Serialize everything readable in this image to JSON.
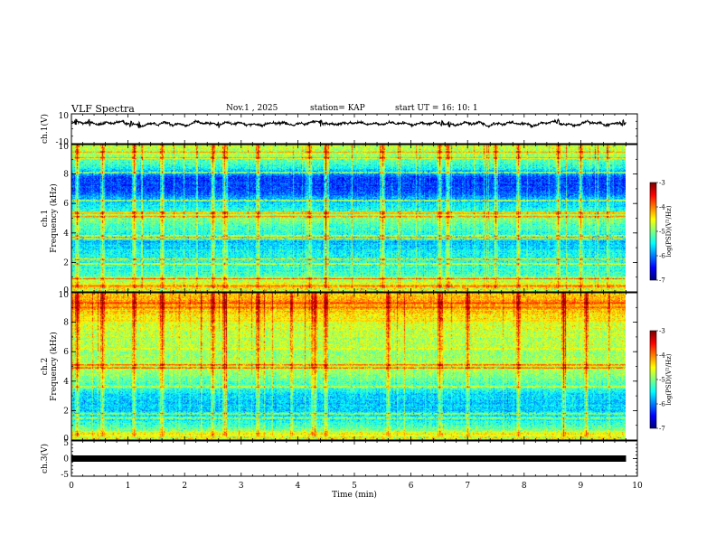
{
  "header": {
    "title": "VLF Spectra",
    "date": "Nov.1  , 2025",
    "station": "station= KAP",
    "start": "start  UT  =   16: 10: 1"
  },
  "chart_data": [
    {
      "type": "line",
      "name": "ch1-waveform",
      "ylabel": "ch.1(V)",
      "ylim": [
        -10,
        10
      ],
      "yticks": [
        "10",
        "-10"
      ],
      "xlim": [
        0,
        10
      ],
      "x_end": 9.8,
      "baseline": 3.5,
      "amplitude_range": [
        1.5,
        7.5
      ],
      "spike_times": [
        0.08,
        0.32,
        1.05,
        1.2,
        2.6,
        4.4,
        6.55,
        6.68,
        8.6,
        9.75
      ]
    },
    {
      "type": "heatmap",
      "name": "ch1-spectrogram",
      "ylabel": "ch.1\nFrequency (kHz)",
      "ylim": [
        0,
        10
      ],
      "yticks": [
        "0",
        "2",
        "4",
        "6",
        "8",
        "10"
      ],
      "xlim": [
        0,
        10
      ],
      "x_end": 9.8,
      "colorbar": {
        "label": "log(PSD)(V²/Hz)",
        "range": [
          -7,
          -3
        ],
        "ticks": [
          "-3",
          "-4",
          "-5",
          "-6",
          "-7"
        ]
      },
      "profile": [
        {
          "f": 0.0,
          "v": -4.4
        },
        {
          "f": 0.4,
          "v": -4.4
        },
        {
          "f": 0.8,
          "v": -4.9
        },
        {
          "f": 1.2,
          "v": -5.3
        },
        {
          "f": 2.0,
          "v": -5.4
        },
        {
          "f": 2.8,
          "v": -5.55
        },
        {
          "f": 3.4,
          "v": -5.75
        },
        {
          "f": 4.2,
          "v": -5.3
        },
        {
          "f": 5.0,
          "v": -5.0
        },
        {
          "f": 5.6,
          "v": -5.4
        },
        {
          "f": 6.0,
          "v": -5.6
        },
        {
          "f": 6.4,
          "v": -5.9
        },
        {
          "f": 7.0,
          "v": -6.3
        },
        {
          "f": 7.8,
          "v": -6.2
        },
        {
          "f": 8.5,
          "v": -5.4
        },
        {
          "f": 9.3,
          "v": -4.9
        },
        {
          "f": 10.0,
          "v": -4.7
        }
      ],
      "lines": [
        {
          "f": 0.4,
          "v": -3.8
        },
        {
          "f": 0.9,
          "v": -3.6
        },
        {
          "f": 1.9,
          "v": -4.2
        },
        {
          "f": 2.2,
          "v": -3.8
        },
        {
          "f": 3.6,
          "v": -4.1
        },
        {
          "f": 3.8,
          "v": -4.0
        },
        {
          "f": 5.1,
          "v": -3.7
        },
        {
          "f": 5.3,
          "v": -4.1
        },
        {
          "f": 5.4,
          "v": -3.8
        },
        {
          "f": 6.2,
          "v": -4.4
        },
        {
          "f": 8.1,
          "v": -4.5
        },
        {
          "f": 9.1,
          "v": -4.0
        },
        {
          "f": 9.5,
          "v": -3.9
        }
      ],
      "events": [
        0.1,
        0.55,
        1.1,
        1.6,
        2.5,
        2.7,
        3.3,
        4.2,
        4.5,
        5.5,
        6.5,
        6.65,
        7.5,
        7.9,
        8.6,
        9.0
      ]
    },
    {
      "type": "heatmap",
      "name": "ch2-spectrogram",
      "ylabel": "ch.2\nFrequency (kHz)",
      "ylim": [
        0,
        10
      ],
      "yticks": [
        "0",
        "2",
        "4",
        "6",
        "8",
        "10"
      ],
      "xlim": [
        0,
        10
      ],
      "x_end": 9.8,
      "colorbar": {
        "label": "log(PSD)(V²/Hz)",
        "range": [
          -7,
          -3
        ],
        "ticks": [
          "-3",
          "-4",
          "-5",
          "-6",
          "-7"
        ]
      },
      "profile": [
        {
          "f": 0.0,
          "v": -5.6
        },
        {
          "f": 0.4,
          "v": -4.5
        },
        {
          "f": 0.8,
          "v": -5.1
        },
        {
          "f": 1.5,
          "v": -5.6
        },
        {
          "f": 2.2,
          "v": -5.7
        },
        {
          "f": 3.0,
          "v": -5.65
        },
        {
          "f": 3.6,
          "v": -5.3
        },
        {
          "f": 4.3,
          "v": -5.0
        },
        {
          "f": 5.0,
          "v": -4.7
        },
        {
          "f": 5.6,
          "v": -4.9
        },
        {
          "f": 6.3,
          "v": -4.85
        },
        {
          "f": 7.0,
          "v": -4.8
        },
        {
          "f": 8.0,
          "v": -4.6
        },
        {
          "f": 8.8,
          "v": -4.3
        },
        {
          "f": 9.4,
          "v": -4.1
        },
        {
          "f": 10.0,
          "v": -4.4
        }
      ],
      "lines": [
        {
          "f": 0.3,
          "v": -4.4
        },
        {
          "f": 1.5,
          "v": -4.6
        },
        {
          "f": 1.8,
          "v": -4.2
        },
        {
          "f": 3.6,
          "v": -4.3
        },
        {
          "f": 4.9,
          "v": -3.6
        },
        {
          "f": 5.1,
          "v": -3.6
        },
        {
          "f": 6.2,
          "v": -4.3
        },
        {
          "f": 8.1,
          "v": -4.2
        },
        {
          "f": 9.0,
          "v": -3.7
        },
        {
          "f": 9.3,
          "v": -3.6
        }
      ],
      "events": [
        0.1,
        0.55,
        1.1,
        1.6,
        2.5,
        2.7,
        3.3,
        4.3,
        4.5,
        5.6,
        6.5,
        7.0,
        7.9,
        8.7,
        9.1
      ]
    },
    {
      "type": "line",
      "name": "ch3-waveform",
      "ylabel": "ch.3(V)",
      "ylim": [
        -5,
        5
      ],
      "yticks": [
        "5",
        "0",
        "-5"
      ],
      "xlim": [
        0,
        10
      ],
      "x_end": 9.8,
      "value": 0
    }
  ],
  "xaxis": {
    "label": "Time  (min)",
    "ticks": [
      "0",
      "1",
      "2",
      "3",
      "4",
      "5",
      "6",
      "7",
      "8",
      "9",
      "10"
    ]
  }
}
